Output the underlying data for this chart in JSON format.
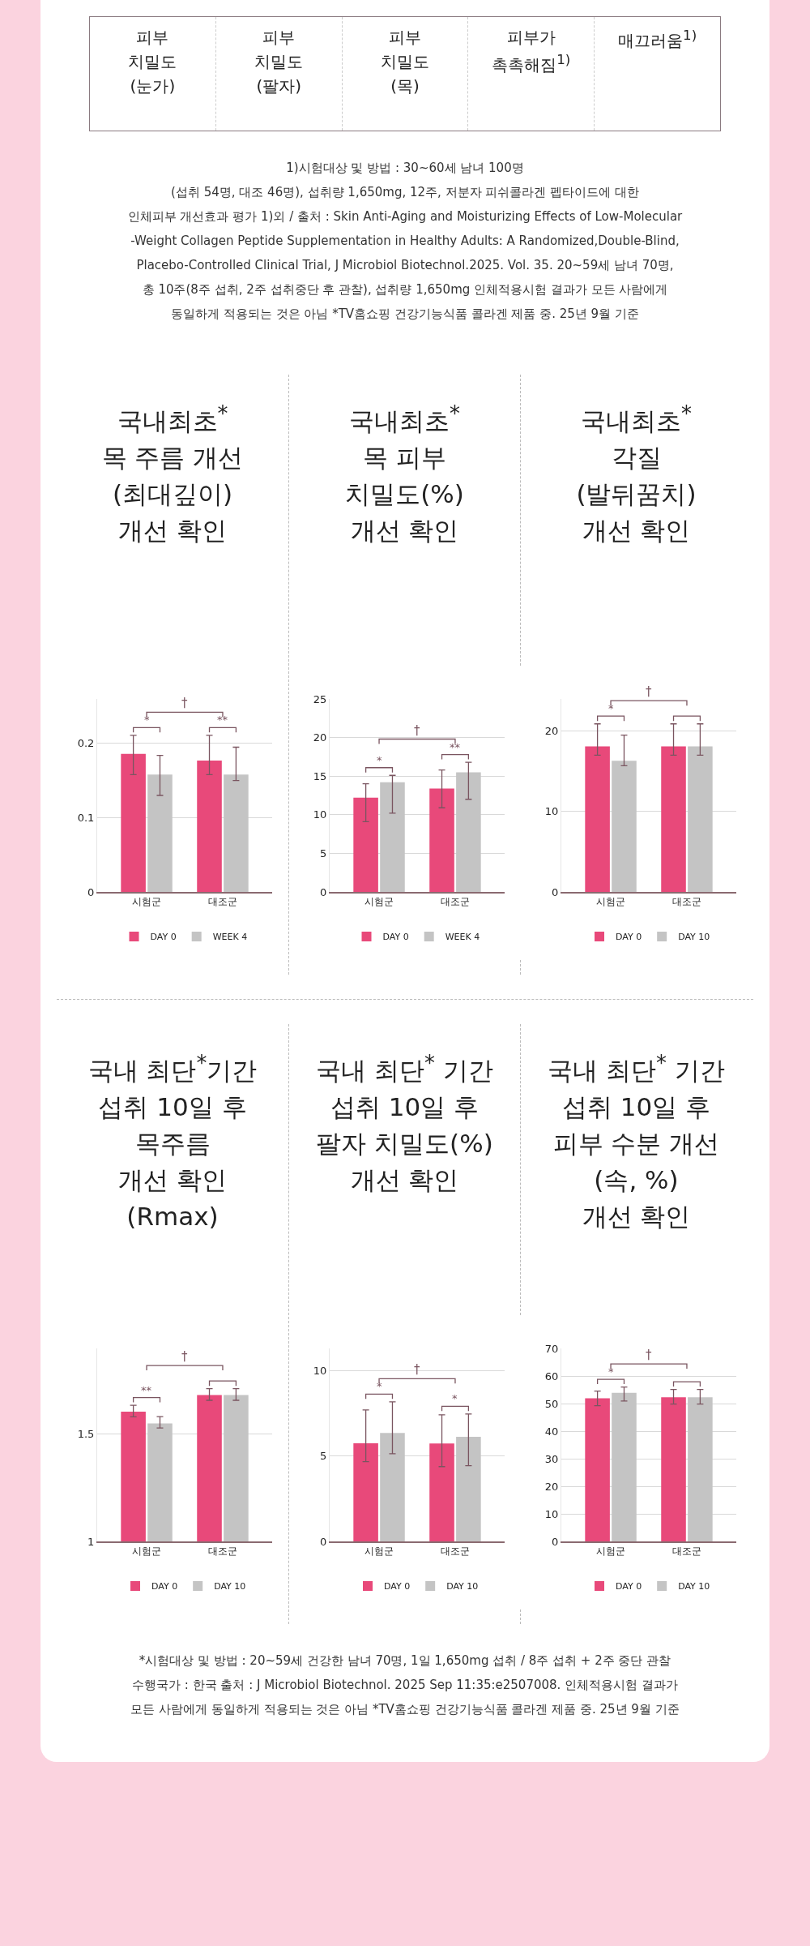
{
  "chart_data": [
    {
      "type": "other",
      "categories": [
        "피부\n치밀도\n(눈가)",
        "피부\n치밀도\n(팔자)",
        "피부\n치밀도\n(목)",
        "피부가\n촉촉해짐$^{1)}$",
        "매끄러움$^{1)}$"
      ],
      "annotations": [
        "1)시험대상 및 방법 : 30~60세 남녀 100명\n(섭취 54명, 대조 46명), 섭취량 1,650mg, 12주, 저분자 피쉬콜라겐 펩타이드에 대한\n인체피부 개선효과 평가 1)외 / 출처 : Skin Anti-Aging and Moisturizing Effects of Low-Molecular\n-Weight Collagen Peptide Supplementation in Healthy Adults: A Randomized,Double-Blind,\nPlacebo-Controlled Clinical Trial,  J Microbiol Biotechnol.2025. Vol. 35. 20~59세 남녀 70명,\n총 10주(8주 섭취, 2주 섭취중단 후 관찰), 섭취량 1,650mg 인체적용시험 결과가 모든 사람에게\n동일하게 적용되는 것은 아님 *TV홈쇼핑 건강기능식품 콜라겐 제품 중. 25년 9월 기준"
      ]
    },
    {
      "type": "bar",
      "title": "국내최초$^{*}$\n목 주름 개선\n(최대깊이)\n개선 확인",
      "categories": [
        "시험군",
        "대조군"
      ],
      "ylim": [
        0,
        0.26
      ],
      "yticks": [
        0,
        0.1,
        0.2
      ],
      "grid": "y",
      "legend": "bottom",
      "series": [
        {
          "name": "DAY 0",
          "color": "#e8497a",
          "values": [
            0.186,
            0.177
          ],
          "errors": [
            [
              0.158,
              0.211
            ],
            [
              0.158,
              0.211
            ]
          ]
        },
        {
          "name": "WEEK 4",
          "color": "#c4c4c4",
          "values": [
            0.158,
            0.158
          ],
          "errors": [
            [
              0.13,
              0.184
            ],
            [
              0.15,
              0.195
            ]
          ]
        }
      ],
      "annotations": [
        "*",
        "**",
        "†"
      ]
    },
    {
      "type": "bar",
      "title": "국내최초$^{*}$\n목 피부\n치밀도(%)\n개선 확인",
      "categories": [
        "시험군",
        "대조군"
      ],
      "ylim": [
        0,
        25
      ],
      "yticks": [
        0,
        5,
        10,
        15,
        20,
        25
      ],
      "grid": "y",
      "legend": "bottom",
      "series": [
        {
          "name": "DAY 0",
          "color": "#e8497a",
          "values": [
            12.2,
            13.4
          ],
          "errors": [
            [
              9.1,
              14.0
            ],
            [
              10.9,
              15.8
            ]
          ]
        },
        {
          "name": "WEEK 4",
          "color": "#c4c4c4",
          "values": [
            14.2,
            15.5
          ],
          "errors": [
            [
              10.2,
              15.1
            ],
            [
              12.0,
              16.8
            ]
          ]
        }
      ],
      "annotations": [
        "*",
        "**",
        "†"
      ]
    },
    {
      "type": "bar",
      "title": "국내최초$^{*}$\n각질\n(발뒤꿈치)\n개선 확인",
      "categories": [
        "시험군",
        "대조군"
      ],
      "ylim": [
        0,
        24
      ],
      "yticks": [
        0,
        10,
        20
      ],
      "grid": "y",
      "legend": "bottom",
      "series": [
        {
          "name": "DAY 0",
          "color": "#e8497a",
          "values": [
            18.1,
            18.1
          ],
          "errors": [
            [
              17.0,
              20.9
            ],
            [
              17.0,
              20.9
            ]
          ]
        },
        {
          "name": "DAY 10",
          "color": "#c4c4c4",
          "values": [
            16.3,
            18.1
          ],
          "errors": [
            [
              15.7,
              19.5
            ],
            [
              17.0,
              20.9
            ]
          ]
        }
      ],
      "annotations": [
        "*",
        "†"
      ]
    },
    {
      "type": "bar",
      "title": "국내 최단$^{*}$기간\n섭취 10일 후\n목주름\n개선 확인\n(Rmax)",
      "categories": [
        "시험군",
        "대조군"
      ],
      "ylim": [
        1,
        1.9
      ],
      "yticks": [
        1,
        1.5
      ],
      "grid": "y",
      "legend": "bottom",
      "series": [
        {
          "name": "DAY 0",
          "color": "#e8497a",
          "values": [
            1.605,
            1.683
          ],
          "errors": [
            [
              1.581,
              1.635
            ],
            [
              1.658,
              1.712
            ]
          ]
        },
        {
          "name": "DAY 10",
          "color": "#c4c4c4",
          "values": [
            1.55,
            1.683
          ],
          "errors": [
            [
              1.529,
              1.582
            ],
            [
              1.658,
              1.712
            ]
          ]
        }
      ],
      "annotations": [
        "**",
        "†"
      ]
    },
    {
      "type": "bar",
      "title": "국내 최단$^{*}$ 기간\n섭취 10일 후\n팔자 치밀도(%)\n개선 확인",
      "categories": [
        "시험군",
        "대조군"
      ],
      "ylim": [
        0,
        11.3
      ],
      "yticks": [
        0,
        5,
        10
      ],
      "grid": "y",
      "legend": "bottom",
      "series": [
        {
          "name": "DAY 0",
          "color": "#e8497a",
          "values": [
            5.75,
            5.73
          ],
          "errors": [
            [
              4.67,
              7.7
            ],
            [
              4.38,
              7.41
            ]
          ]
        },
        {
          "name": "DAY 10",
          "color": "#c4c4c4",
          "values": [
            6.35,
            6.13
          ],
          "errors": [
            [
              5.13,
              8.17
            ],
            [
              4.43,
              7.46
            ]
          ]
        }
      ],
      "annotations": [
        "*",
        "*",
        "†"
      ]
    },
    {
      "type": "bar",
      "title": "국내 최단$^{*}$ 기간\n섭취 10일 후\n피부 수분 개선\n(속, %)\n개선 확인",
      "categories": [
        "시험군",
        "대조군"
      ],
      "ylim": [
        0,
        70
      ],
      "yticks": [
        0,
        10,
        20,
        30,
        40,
        50,
        60,
        70
      ],
      "grid": "y",
      "legend": "bottom",
      "series": [
        {
          "name": "DAY 0",
          "color": "#e8497a",
          "values": [
            51.9,
            52.3
          ],
          "errors": [
            [
              49.2,
              54.5
            ],
            [
              49.8,
              55.1
            ]
          ]
        },
        {
          "name": "DAY 10",
          "color": "#c4c4c4",
          "values": [
            53.9,
            52.3
          ],
          "errors": [
            [
              50.9,
              56.0
            ],
            [
              49.8,
              55.1
            ]
          ]
        }
      ],
      "annotations": [
        "*",
        "†"
      ]
    },
    {
      "type": "other",
      "annotations": [
        "*시험대상 및 방법 : 20~59세 건강한 남녀 70명, 1일 1,650mg 섭취 / 8주 섭취 + 2주 중단 관찰\n수행국가 : 한국 출처 : J Microbiol Biotechnol. 2025 Sep 11:35:e2507008. 인체적용시험 결과가\n모든 사람에게 동일하게 적용되는 것은 아님 *TV홈쇼핑 건강기능식품 콜라겐 제품 중. 25년 9월 기준"
      ]
    }
  ]
}
